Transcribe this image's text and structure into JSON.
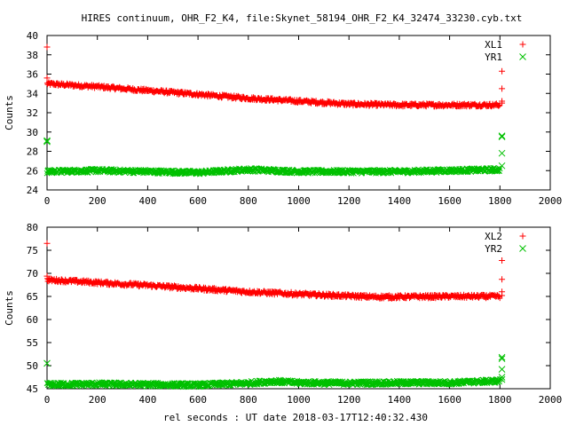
{
  "figure": {
    "title": "HIRES continuum, OHR_F2_K4, file:Skynet_58194_OHR_F2_K4_32474_33230.cyb.txt",
    "xlabel": "rel seconds : UT date 2018-03-17T12:40:32.430"
  },
  "colors": {
    "red": "#ff0000",
    "green": "#00c000"
  },
  "chart_data": [
    {
      "type": "scatter",
      "ylabel": "Counts",
      "xlim": [
        0,
        2000
      ],
      "ylim": [
        24,
        40
      ],
      "xticks": [
        "0",
        "200",
        "400",
        "600",
        "800",
        "1000",
        "1200",
        "1400",
        "1600",
        "1800",
        "2000"
      ],
      "yticks": [
        "24",
        "26",
        "28",
        "30",
        "32",
        "34",
        "36",
        "38",
        "40"
      ],
      "grid": false,
      "legend_position": "top-right",
      "series": [
        {
          "name": "XL1",
          "marker": "plus",
          "color": "#ff0000",
          "trend": [
            [
              0,
              35.0
            ],
            [
              200,
              34.7
            ],
            [
              400,
              34.3
            ],
            [
              600,
              33.9
            ],
            [
              800,
              33.5
            ],
            [
              1000,
              33.2
            ],
            [
              1200,
              32.9
            ],
            [
              1400,
              32.8
            ],
            [
              1600,
              32.8
            ],
            [
              1800,
              32.8
            ]
          ],
          "outliers": [
            [
              0,
              38.8
            ],
            [
              0,
              35.6
            ],
            [
              1808,
              36.3
            ],
            [
              1808,
              34.5
            ],
            [
              1808,
              33.2
            ],
            [
              1808,
              33.0
            ]
          ]
        },
        {
          "name": "YR1",
          "marker": "cross",
          "color": "#00c000",
          "trend": [
            [
              0,
              25.9
            ],
            [
              200,
              26.0
            ],
            [
              400,
              25.9
            ],
            [
              600,
              25.8
            ],
            [
              800,
              26.1
            ],
            [
              1000,
              25.9
            ],
            [
              1200,
              25.9
            ],
            [
              1400,
              25.9
            ],
            [
              1600,
              26.0
            ],
            [
              1800,
              26.1
            ]
          ],
          "outliers": [
            [
              0,
              29.1
            ],
            [
              0,
              29.0
            ],
            [
              1808,
              29.6
            ],
            [
              1808,
              29.5
            ],
            [
              1808,
              27.8
            ],
            [
              1808,
              26.5
            ]
          ]
        }
      ]
    },
    {
      "type": "scatter",
      "ylabel": "Counts",
      "xlim": [
        0,
        2000
      ],
      "ylim": [
        45,
        80
      ],
      "xticks": [
        "0",
        "200",
        "400",
        "600",
        "800",
        "1000",
        "1200",
        "1400",
        "1600",
        "1800",
        "2000"
      ],
      "yticks": [
        "45",
        "50",
        "55",
        "60",
        "65",
        "70",
        "75",
        "80"
      ],
      "grid": false,
      "legend_position": "top-right",
      "series": [
        {
          "name": "XL2",
          "marker": "plus",
          "color": "#ff0000",
          "trend": [
            [
              0,
              68.6
            ],
            [
              200,
              68.0
            ],
            [
              400,
              67.4
            ],
            [
              600,
              66.7
            ],
            [
              800,
              66.0
            ],
            [
              1000,
              65.5
            ],
            [
              1200,
              65.1
            ],
            [
              1300,
              64.9
            ],
            [
              1400,
              64.9
            ],
            [
              1600,
              65.0
            ],
            [
              1800,
              65.0
            ]
          ],
          "outliers": [
            [
              0,
              76.5
            ],
            [
              0,
              69.4
            ],
            [
              1808,
              72.8
            ],
            [
              1808,
              68.7
            ],
            [
              1808,
              66.0
            ],
            [
              1808,
              65.2
            ]
          ]
        },
        {
          "name": "YR2",
          "marker": "cross",
          "color": "#00c000",
          "trend": [
            [
              0,
              45.9
            ],
            [
              200,
              46.0
            ],
            [
              400,
              45.9
            ],
            [
              600,
              45.8
            ],
            [
              800,
              46.2
            ],
            [
              900,
              46.6
            ],
            [
              1000,
              46.3
            ],
            [
              1200,
              46.2
            ],
            [
              1400,
              46.3
            ],
            [
              1600,
              46.3
            ],
            [
              1800,
              46.7
            ]
          ],
          "outliers": [
            [
              0,
              50.5
            ],
            [
              1808,
              51.8
            ],
            [
              1808,
              51.5
            ],
            [
              1808,
              49.2
            ],
            [
              1808,
              47.5
            ],
            [
              1808,
              47.0
            ]
          ]
        }
      ]
    }
  ]
}
